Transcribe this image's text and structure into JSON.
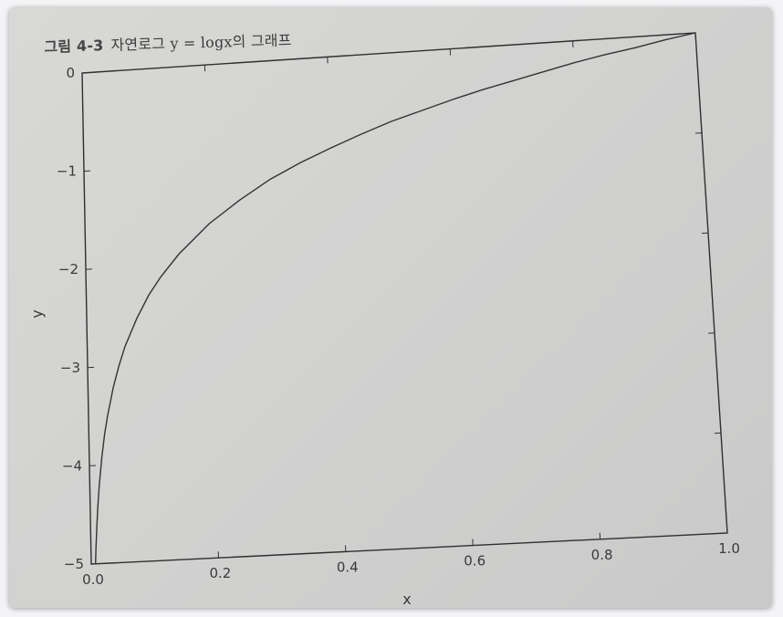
{
  "caption": {
    "label": "그림 4-3",
    "title": "자연로그 y = logx의 그래프"
  },
  "chart_data": {
    "type": "line",
    "title": "",
    "xlabel": "x",
    "ylabel": "y",
    "xlim": [
      0.0,
      1.0
    ],
    "ylim": [
      -5,
      0
    ],
    "grid": false,
    "x_ticks": [
      "0.0",
      "0.2",
      "0.4",
      "0.6",
      "0.8",
      "1.0"
    ],
    "y_ticks": [
      "0",
      "−1",
      "−2",
      "−3",
      "−4",
      "−5"
    ],
    "series": [
      {
        "function": "y = log(x)",
        "x": [
          0.0067,
          0.008,
          0.01,
          0.012,
          0.015,
          0.02,
          0.025,
          0.03,
          0.04,
          0.05,
          0.06,
          0.08,
          0.1,
          0.12,
          0.15,
          0.2,
          0.25,
          0.3,
          0.35,
          0.4,
          0.45,
          0.5,
          0.55,
          0.6,
          0.65,
          0.7,
          0.75,
          0.8,
          0.85,
          0.9,
          0.95,
          1.0
        ],
        "y": [
          -5.0,
          -4.83,
          -4.61,
          -4.42,
          -4.2,
          -3.91,
          -3.69,
          -3.51,
          -3.22,
          -3.0,
          -2.81,
          -2.53,
          -2.3,
          -2.12,
          -1.9,
          -1.61,
          -1.39,
          -1.2,
          -1.05,
          -0.92,
          -0.8,
          -0.69,
          -0.6,
          -0.51,
          -0.43,
          -0.36,
          -0.29,
          -0.22,
          -0.16,
          -0.11,
          -0.05,
          0.0
        ]
      }
    ]
  }
}
